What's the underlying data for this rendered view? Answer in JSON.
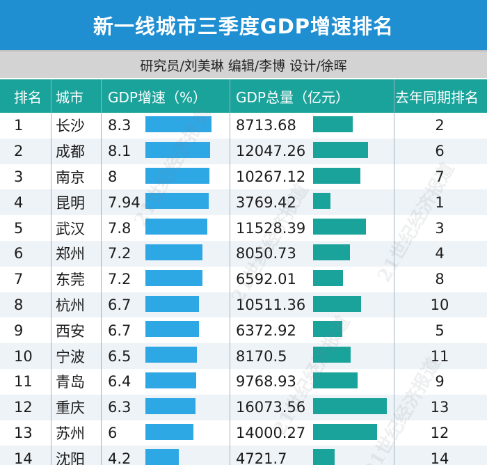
{
  "title": "新一线城市三季度GDP增速排名",
  "credit": "研究员/刘美琳 编辑/李博  设计/徐晖",
  "watermark_text": "21世纪经济报道",
  "colors": {
    "title_bg": "#1f8fd2",
    "header_bg": "#1aa39b",
    "growth_bar": "#2ea7e5",
    "total_bar": "#1aa39b"
  },
  "headers": {
    "rank": "排名",
    "city": "城市",
    "growth": "GDP增速（%）",
    "total": "GDP总量（亿元）",
    "last_year": "去年同期排名"
  },
  "chart_data": {
    "type": "table",
    "title": "新一线城市三季度GDP增速排名",
    "columns": [
      "排名",
      "城市",
      "GDP增速（%）",
      "GDP总量（亿元）",
      "去年同期排名"
    ],
    "growth_max": 8.3,
    "total_max": 16073.56,
    "rows": [
      {
        "rank": "1",
        "city": "长沙",
        "growth": "8.3",
        "total": "8713.68",
        "last_year": "2"
      },
      {
        "rank": "2",
        "city": "成都",
        "growth": "8.1",
        "total": "12047.26",
        "last_year": "6"
      },
      {
        "rank": "3",
        "city": "南京",
        "growth": "8",
        "total": "10267.12",
        "last_year": "7"
      },
      {
        "rank": "4",
        "city": "昆明",
        "growth": "7.94",
        "total": "3769.42",
        "last_year": "1"
      },
      {
        "rank": "5",
        "city": "武汉",
        "growth": "7.8",
        "total": "11528.39",
        "last_year": "3"
      },
      {
        "rank": "6",
        "city": "郑州",
        "growth": "7.2",
        "total": "8050.73",
        "last_year": "4"
      },
      {
        "rank": "7",
        "city": "东莞",
        "growth": "7.2",
        "total": "6592.01",
        "last_year": "8"
      },
      {
        "rank": "8",
        "city": "杭州",
        "growth": "6.7",
        "total": "10511.36",
        "last_year": "10"
      },
      {
        "rank": "9",
        "city": "西安",
        "growth": "6.7",
        "total": "6372.92",
        "last_year": "5"
      },
      {
        "rank": "10",
        "city": "宁波",
        "growth": "6.5",
        "total": "8170.5",
        "last_year": "11"
      },
      {
        "rank": "11",
        "city": "青岛",
        "growth": "6.4",
        "total": "9768.93",
        "last_year": "9"
      },
      {
        "rank": "12",
        "city": "重庆",
        "growth": "6.3",
        "total": "16073.56",
        "last_year": "13"
      },
      {
        "rank": "13",
        "city": "苏州",
        "growth": "6",
        "total": "14000.27",
        "last_year": "12"
      },
      {
        "rank": "14",
        "city": "沈阳",
        "growth": "4.2",
        "total": "4721.7",
        "last_year": "14"
      }
    ]
  }
}
